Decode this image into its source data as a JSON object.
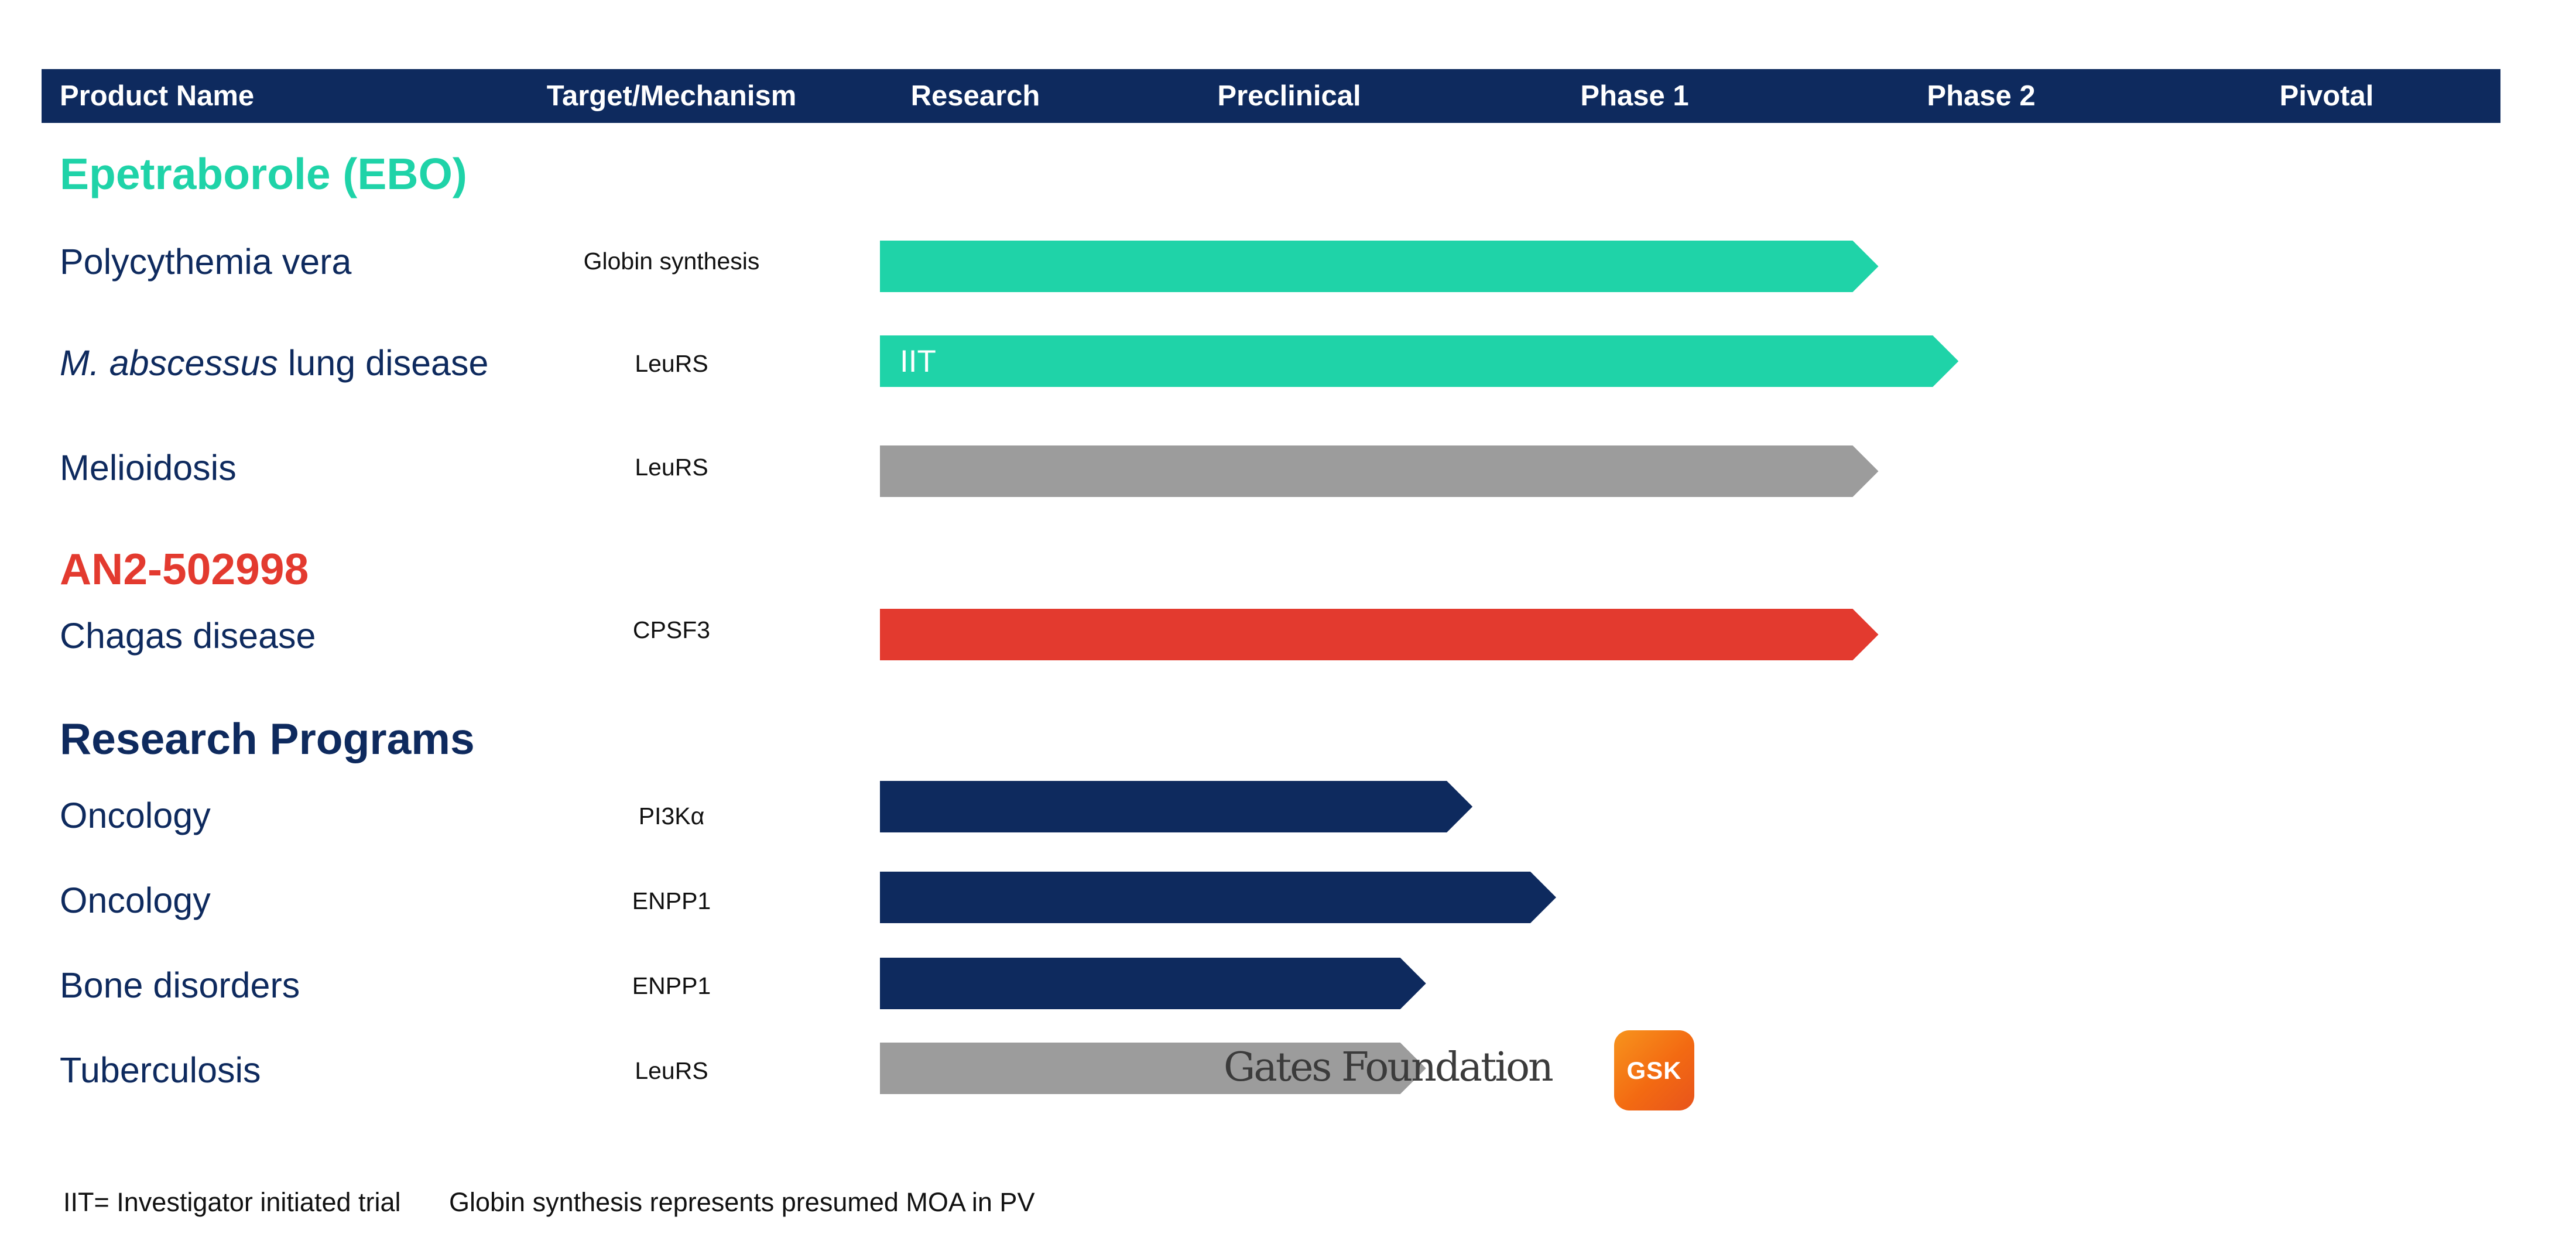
{
  "header": {
    "columns": [
      {
        "label": "Product Name"
      },
      {
        "label": "Target/Mechanism"
      },
      {
        "label": "Research"
      },
      {
        "label": "Preclinical"
      },
      {
        "label": "Phase 1"
      },
      {
        "label": "Phase 2"
      },
      {
        "label": "Pivotal"
      }
    ]
  },
  "colors": {
    "header_bg": "#0e2a5e",
    "teal": "#1fd3a8",
    "gray": "#9c9c9c",
    "red": "#e33a2f",
    "navy": "#0e2a5e"
  },
  "sections": [
    {
      "title": "Epetraborole (EBO)",
      "color": "#1fd3a8",
      "rows": [
        {
          "name": "Polycythemia vera",
          "name_italic": "",
          "target": "Globin synthesis",
          "bar_color": "#1fd3a8",
          "bar_label": "",
          "progress_stage": 5.05
        },
        {
          "name": " lung disease",
          "name_italic": "M. abscessus",
          "target": "LeuRS",
          "bar_color": "#1fd3a8",
          "bar_label": "IIT",
          "progress_stage": 5.29
        },
        {
          "name": "Melioidosis",
          "name_italic": "",
          "target": "LeuRS",
          "bar_color": "#9c9c9c",
          "bar_label": "",
          "progress_stage": 5.05
        }
      ]
    },
    {
      "title": "AN2-502998",
      "color": "#e33a2f",
      "rows": [
        {
          "name": "Chagas disease",
          "name_italic": "",
          "target": "CPSF3",
          "bar_color": "#e33a2f",
          "bar_label": "",
          "progress_stage": 5.05
        }
      ]
    },
    {
      "title": "Research Programs",
      "color": "#0e2a5e",
      "rows": [
        {
          "name": "Oncology",
          "name_italic": "",
          "target": "PI3Kα",
          "bar_color": "#0e2a5e",
          "bar_label": "",
          "progress_stage": 3.84
        },
        {
          "name": "Oncology",
          "name_italic": "",
          "target": "ENPP1",
          "bar_color": "#0e2a5e",
          "bar_label": "",
          "progress_stage": 4.1
        },
        {
          "name": "Bone disorders",
          "name_italic": "",
          "target": "ENPP1",
          "bar_color": "#0e2a5e",
          "bar_label": "",
          "progress_stage": 3.69
        },
        {
          "name": "Tuberculosis",
          "name_italic": "",
          "target": "LeuRS",
          "bar_color": "#9c9c9c",
          "bar_label": "",
          "progress_stage": 3.69
        }
      ]
    }
  ],
  "partners": {
    "gates": "Gates Foundation",
    "gsk": "GSK"
  },
  "footnotes": {
    "iit": "IIT= Investigator initiated trial",
    "moa": "Globin synthesis represents presumed MOA in PV"
  }
}
